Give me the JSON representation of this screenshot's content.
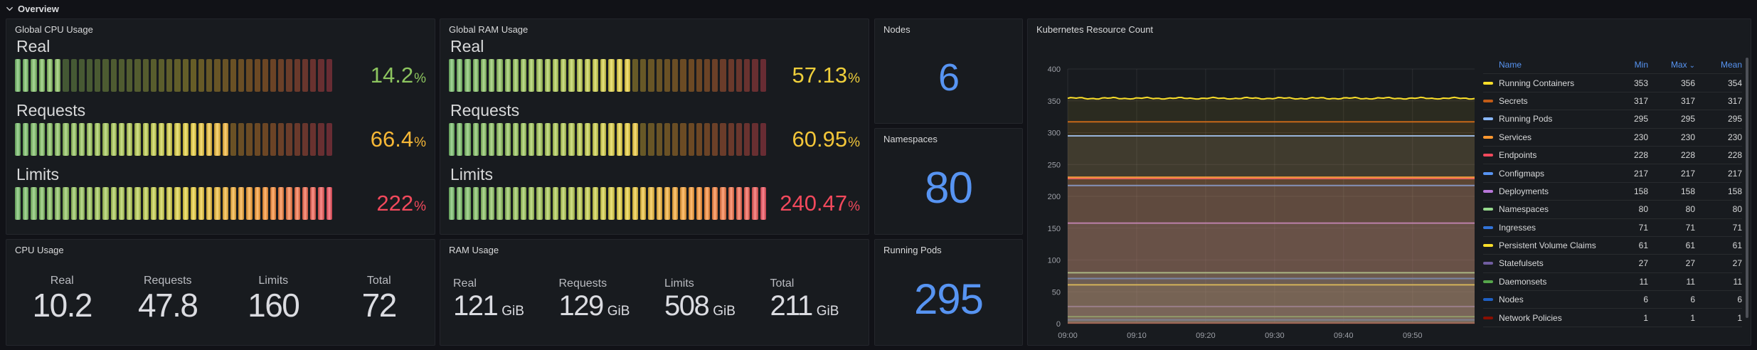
{
  "section": {
    "title": "Overview"
  },
  "colors": {
    "accent_blue": "#5794F2",
    "page_bg": "#111217",
    "panel_bg": "#181B1F",
    "gauge_green": "#73BF69",
    "gauge_yellow": "#EDD53C",
    "gauge_orange": "#FF9830",
    "gauge_red": "#F2495C"
  },
  "panels": {
    "global_cpu": {
      "title": "Global CPU Usage",
      "unit": "%",
      "gauges": [
        {
          "label": "Real",
          "value": "14.2",
          "percent": 14.2
        },
        {
          "label": "Requests",
          "value": "66.4",
          "percent": 66.4
        },
        {
          "label": "Limits",
          "value": "222",
          "percent": 222
        }
      ]
    },
    "global_ram": {
      "title": "Global RAM Usage",
      "unit": "%",
      "gauges": [
        {
          "label": "Real",
          "value": "57.13",
          "percent": 57.13
        },
        {
          "label": "Requests",
          "value": "60.95",
          "percent": 60.95
        },
        {
          "label": "Limits",
          "value": "240.47",
          "percent": 240.47
        }
      ]
    },
    "nodes": {
      "title": "Nodes",
      "value": "6"
    },
    "namespaces": {
      "title": "Namespaces",
      "value": "80"
    },
    "running_pods": {
      "title": "Running Pods",
      "value": "295"
    },
    "cpu_usage": {
      "title": "CPU Usage",
      "stats": [
        {
          "label": "Real",
          "value": "10.2",
          "unit": ""
        },
        {
          "label": "Requests",
          "value": "47.8",
          "unit": ""
        },
        {
          "label": "Limits",
          "value": "160",
          "unit": ""
        },
        {
          "label": "Total",
          "value": "72",
          "unit": ""
        }
      ]
    },
    "ram_usage": {
      "title": "RAM Usage",
      "stats": [
        {
          "label": "Real",
          "value": "121",
          "unit": "GiB"
        },
        {
          "label": "Requests",
          "value": "129",
          "unit": "GiB"
        },
        {
          "label": "Limits",
          "value": "508",
          "unit": "GiB"
        },
        {
          "label": "Total",
          "value": "211",
          "unit": "GiB"
        }
      ]
    }
  },
  "chart_data": {
    "type": "area",
    "title": "Kubernetes Resource Count",
    "xlabel": "",
    "ylabel": "",
    "ylim": [
      0,
      400
    ],
    "y_ticks": [
      0,
      50,
      100,
      150,
      200,
      250,
      300,
      350,
      400
    ],
    "x_ticks": [
      "09:00",
      "09:10",
      "09:20",
      "09:30",
      "09:40",
      "09:50"
    ],
    "grid": true,
    "legend_position": "right-table",
    "legend_columns": [
      "Name",
      "Min",
      "Max",
      "Mean"
    ],
    "sorted_column": "Max",
    "series": [
      {
        "name": "Running Containers",
        "color": "#FADE2A",
        "y": 354,
        "min": 353,
        "max": 356,
        "mean": 354,
        "fluctuates": true
      },
      {
        "name": "Secrets",
        "color": "#C15C17",
        "y": 317,
        "min": 317,
        "max": 317,
        "mean": 317
      },
      {
        "name": "Running Pods",
        "color": "#8AB8FF",
        "y": 295,
        "min": 295,
        "max": 295,
        "mean": 295
      },
      {
        "name": "Services",
        "color": "#FF9830",
        "y": 230,
        "min": 230,
        "max": 230,
        "mean": 230
      },
      {
        "name": "Endpoints",
        "color": "#F2495C",
        "y": 228,
        "min": 228,
        "max": 228,
        "mean": 228
      },
      {
        "name": "Configmaps",
        "color": "#5794F2",
        "y": 217,
        "min": 217,
        "max": 217,
        "mean": 217
      },
      {
        "name": "Deployments",
        "color": "#B877D9",
        "y": 158,
        "min": 158,
        "max": 158,
        "mean": 158
      },
      {
        "name": "Namespaces",
        "color": "#96D98D",
        "y": 80,
        "min": 80,
        "max": 80,
        "mean": 80
      },
      {
        "name": "Ingresses",
        "color": "#3274D9",
        "y": 71,
        "min": 71,
        "max": 71,
        "mean": 71
      },
      {
        "name": "Persistent Volume Claims",
        "color": "#FADE2A",
        "y": 61,
        "min": 61,
        "max": 61,
        "mean": 61
      },
      {
        "name": "Statefulsets",
        "color": "#705DA0",
        "y": 27,
        "min": 27,
        "max": 27,
        "mean": 27
      },
      {
        "name": "Daemonsets",
        "color": "#56A64B",
        "y": 11,
        "min": 11,
        "max": 11,
        "mean": 11
      },
      {
        "name": "Nodes",
        "color": "#1F60C4",
        "y": 6,
        "min": 6,
        "max": 6,
        "mean": 6
      },
      {
        "name": "Network Policies",
        "color": "#890F02",
        "y": 1,
        "min": 1,
        "max": 1,
        "mean": 1
      }
    ]
  }
}
